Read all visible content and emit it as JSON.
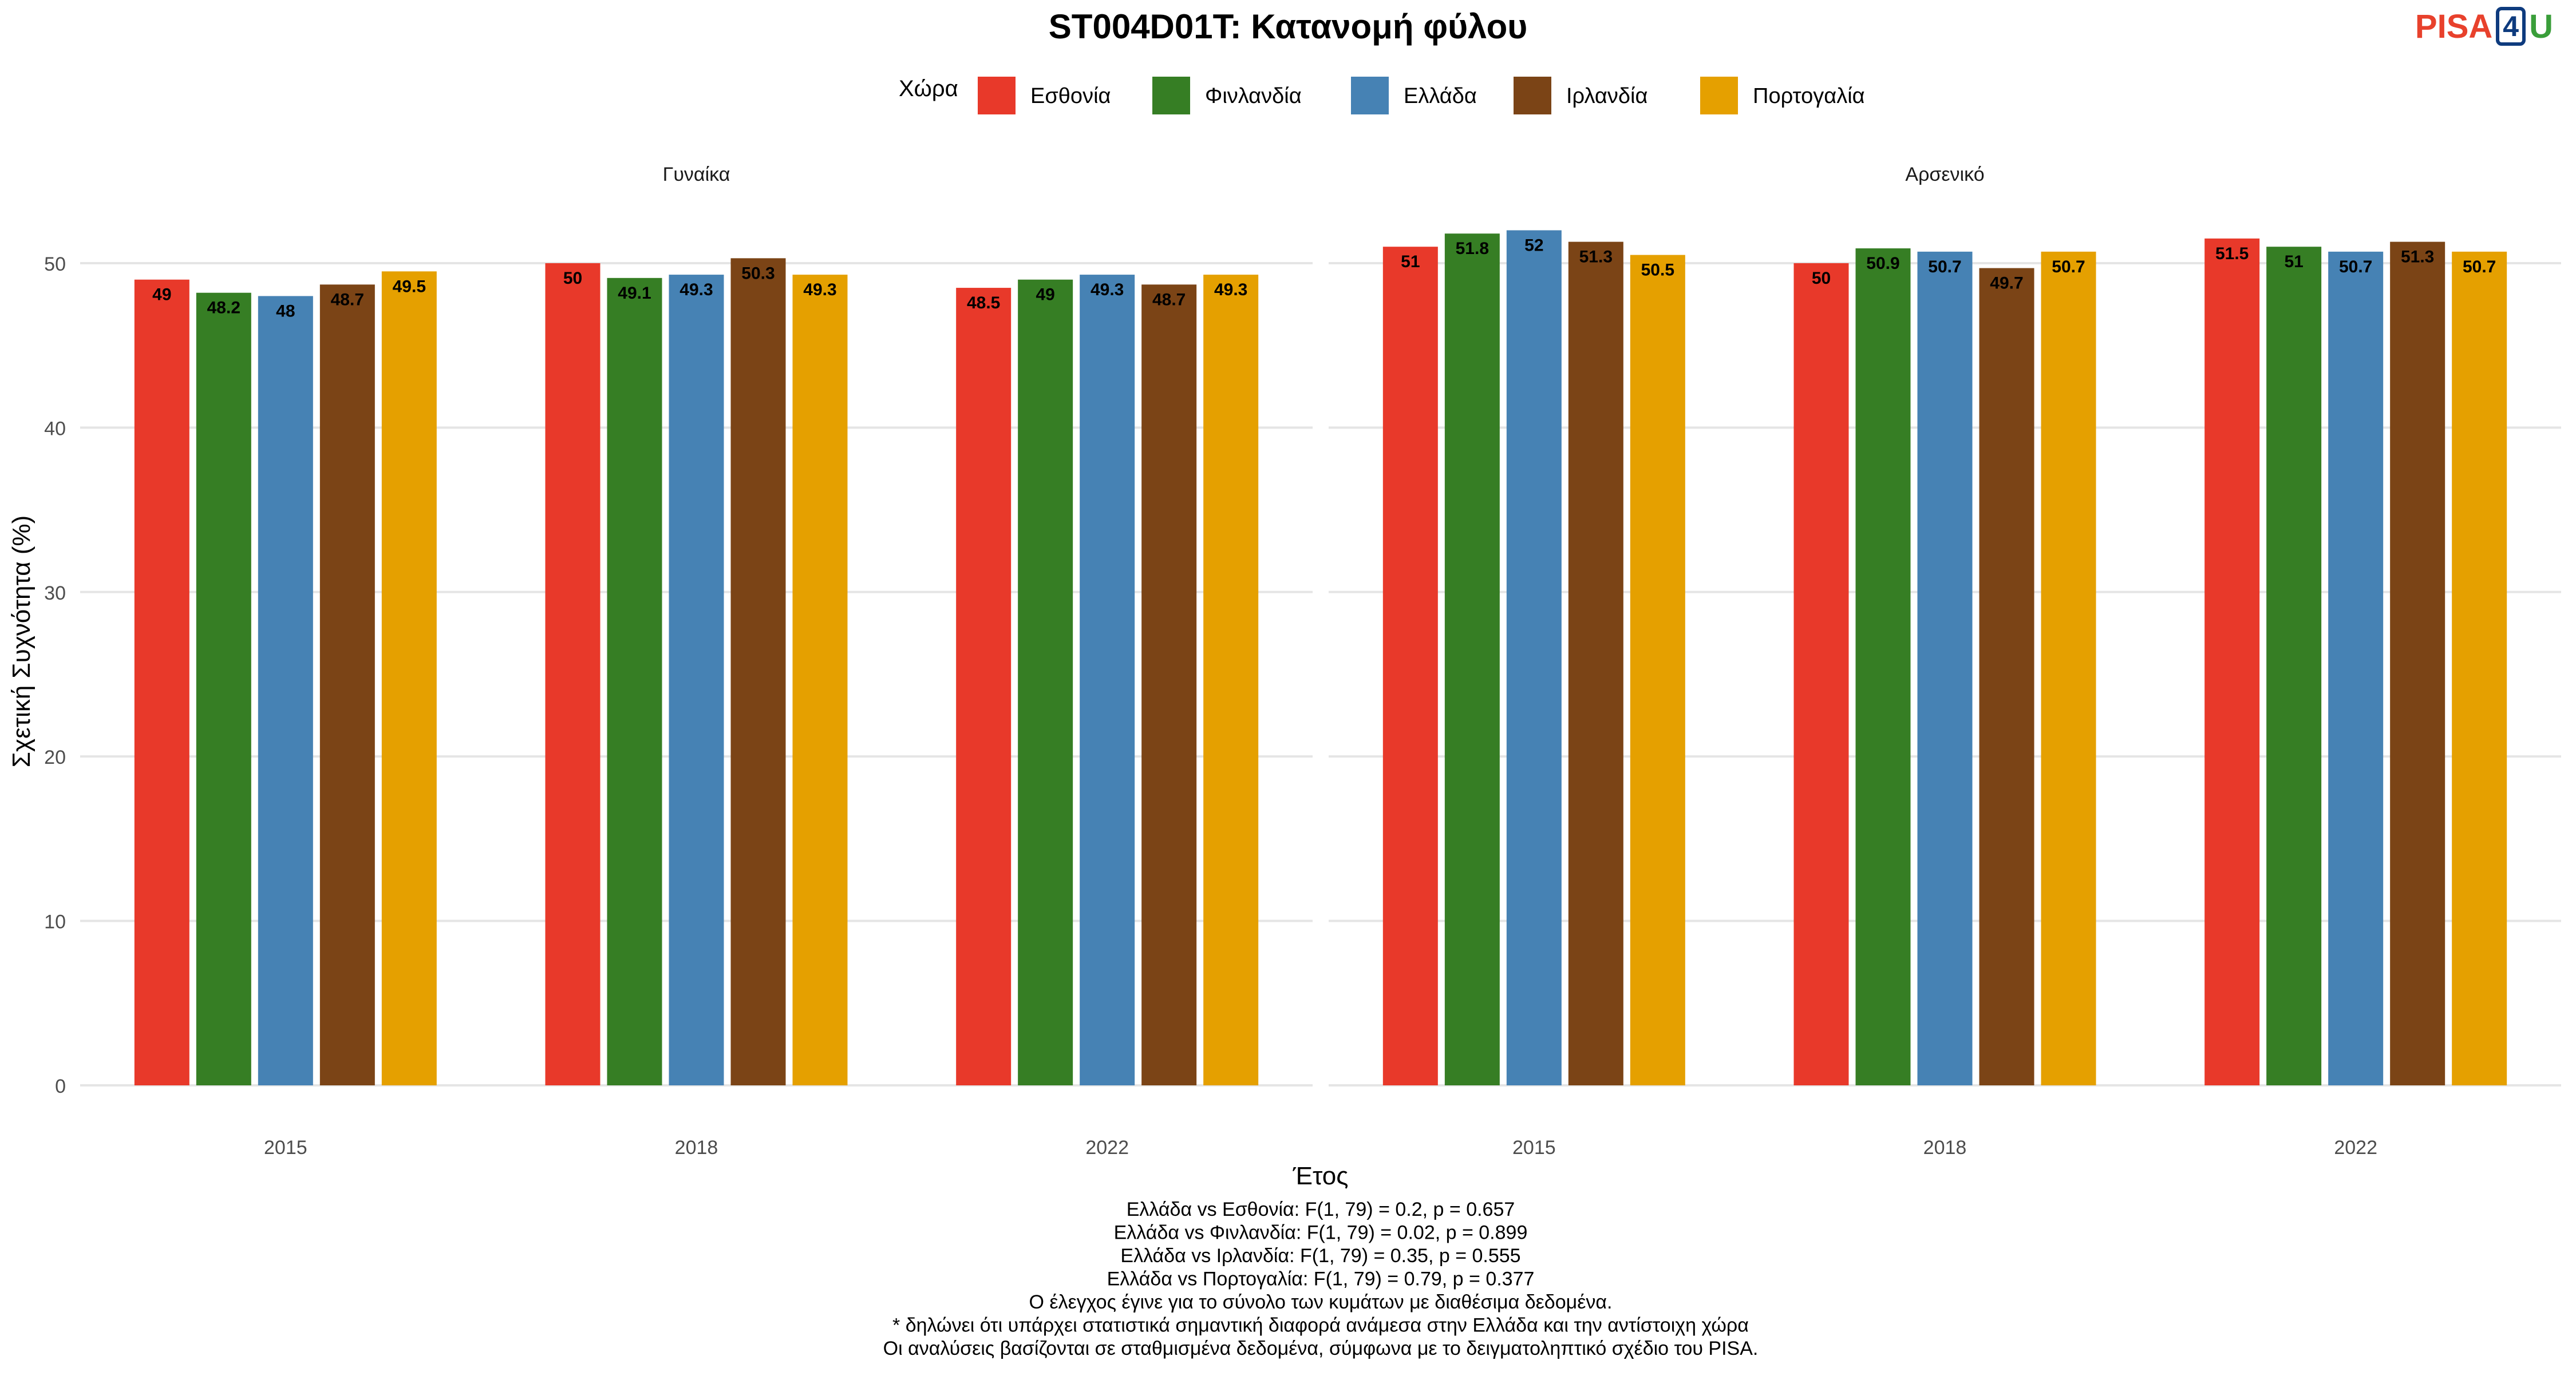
{
  "chart_data": {
    "type": "bar",
    "title": "ST004D01T: Κατανομή φύλου",
    "xlabel": "Έτος",
    "ylabel": "Σχετική Συχνότητα (%)",
    "ylim": [
      0,
      54
    ],
    "yticks": [
      0,
      10,
      20,
      30,
      40,
      50
    ],
    "grid": true,
    "legend_title": "Χώρα",
    "legend_position": "top",
    "categories": [
      "2015",
      "2018",
      "2022"
    ],
    "panels": [
      {
        "label": "Γυναίκα",
        "series": [
          {
            "name": "Εσθονία",
            "color": "#E8392A",
            "values": [
              49,
              50,
              48.5
            ],
            "labels": [
              "49",
              "50",
              "48.5"
            ]
          },
          {
            "name": "Φινλανδία",
            "color": "#367E24",
            "values": [
              48.2,
              49.1,
              49
            ],
            "labels": [
              "48.2",
              "49.1",
              "49"
            ]
          },
          {
            "name": "Ελλάδα",
            "color": "#4682B4",
            "values": [
              48,
              49.3,
              49.3
            ],
            "labels": [
              "48",
              "49.3",
              "49.3"
            ]
          },
          {
            "name": "Ιρλανδία",
            "color": "#7B4416",
            "values": [
              48.7,
              50.3,
              48.7
            ],
            "labels": [
              "48.7",
              "50.3",
              "48.7"
            ]
          },
          {
            "name": "Πορτογαλία",
            "color": "#E5A000",
            "values": [
              49.5,
              49.3,
              49.3
            ],
            "labels": [
              "49.5",
              "49.3",
              "49.3"
            ]
          }
        ]
      },
      {
        "label": "Αρσενικό",
        "series": [
          {
            "name": "Εσθονία",
            "color": "#E8392A",
            "values": [
              51,
              50,
              51.5
            ],
            "labels": [
              "51",
              "50",
              "51.5"
            ]
          },
          {
            "name": "Φινλανδία",
            "color": "#367E24",
            "values": [
              51.8,
              50.9,
              51
            ],
            "labels": [
              "51.8",
              "50.9",
              "51"
            ]
          },
          {
            "name": "Ελλάδα",
            "color": "#4682B4",
            "values": [
              52,
              50.7,
              50.7
            ],
            "labels": [
              "52",
              "50.7",
              "50.7"
            ]
          },
          {
            "name": "Ιρλανδία",
            "color": "#7B4416",
            "values": [
              51.3,
              49.7,
              51.3
            ],
            "labels": [
              "51.3",
              "49.7",
              "51.3"
            ]
          },
          {
            "name": "Πορτογαλία",
            "color": "#E5A000",
            "values": [
              50.5,
              50.7,
              50.7
            ],
            "labels": [
              "50.5",
              "50.7",
              "50.7"
            ]
          }
        ]
      }
    ],
    "notes": [
      "Ελλάδα vs Εσθονία: F(1, 79) = 0.2, p = 0.657",
      "Ελλάδα vs Φινλανδία: F(1, 79) = 0.02, p = 0.899",
      "Ελλάδα vs Ιρλανδία: F(1, 79) = 0.35, p = 0.555",
      "Ελλάδα vs Πορτογαλία: F(1, 79) = 0.79, p = 0.377",
      "Ο έλεγχος έγινε για το σύνολο των κυμάτων με διαθέσιμα δεδομένα.",
      "* δηλώνει ότι υπάρχει στατιστικά σημαντική διαφορά ανάμεσα στην Ελλάδα και την αντίστοιχη χώρα",
      "Οι αναλύσεις βασίζονται σε σταθμισμένα δεδομένα, σύμφωνα με το δειγματοληπτικό σχέδιο του PISA."
    ]
  },
  "logo": {
    "part1": "PISA",
    "part2": "4",
    "part3": "U"
  }
}
